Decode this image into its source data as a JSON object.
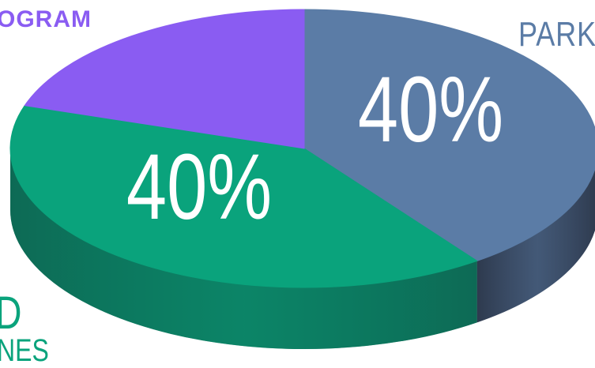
{
  "chart_data": {
    "type": "pie",
    "style": "3d",
    "slices": [
      {
        "label": "40%",
        "value": 40,
        "color": "#5b7ca6",
        "side_color": "#2e3a4e"
      },
      {
        "label": "40%",
        "value": 40,
        "color": "#0aa37c",
        "side_color": "#0d6a55"
      },
      {
        "label": "",
        "value": 20,
        "color": "#8a5cf2",
        "side_color": "#5a3ab0"
      }
    ],
    "callouts": {
      "program": {
        "text": "OGRAM",
        "color": "#8a5cf2"
      },
      "park": {
        "text": "PARK",
        "color": "#5b7ca6"
      },
      "d": {
        "text": "D",
        "color": "#0aa37c"
      },
      "nes": {
        "text": "NES",
        "color": "#0aa37c"
      }
    },
    "value_label_color": "#ffffff"
  }
}
